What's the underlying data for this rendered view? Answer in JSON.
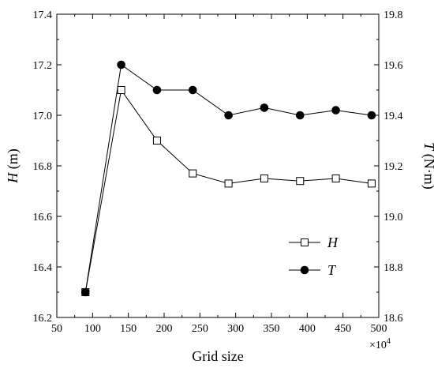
{
  "chart_data": {
    "type": "line",
    "x": [
      90,
      140,
      190,
      240,
      290,
      340,
      390,
      440,
      490
    ],
    "series": [
      {
        "name": "H",
        "axis": "left",
        "marker": "open-square",
        "values": [
          16.3,
          17.1,
          16.9,
          16.77,
          16.73,
          16.75,
          16.74,
          16.75,
          16.73
        ]
      },
      {
        "name": "T",
        "axis": "right",
        "marker": "filled-circle",
        "values": [
          18.7,
          19.6,
          19.5,
          19.5,
          19.4,
          19.43,
          19.4,
          19.42,
          19.4
        ]
      }
    ],
    "xlabel": "Grid size",
    "x_multiplier": "×10",
    "x_multiplier_exp": "4",
    "ylabel_left": {
      "symbol": "H",
      "unit": " (m)"
    },
    "ylabel_right": {
      "symbol": "T",
      "unit": " (N·m)"
    },
    "xlim": [
      50,
      500
    ],
    "xticks": [
      50,
      100,
      150,
      200,
      250,
      300,
      350,
      400,
      450,
      500
    ],
    "ylim_left": [
      16.2,
      17.4
    ],
    "yticks_left": [
      "16.2",
      "16.4",
      "16.6",
      "16.8",
      "17.0",
      "17.2",
      "17.4"
    ],
    "ylim_right": [
      18.6,
      19.8
    ],
    "yticks_right": [
      "18.6",
      "18.8",
      "19.0",
      "19.2",
      "19.4",
      "19.6",
      "19.8"
    ],
    "legend_position": "right, lower-middle",
    "grid": false,
    "colors": {
      "line": "#000000",
      "background": "#ffffff"
    }
  }
}
